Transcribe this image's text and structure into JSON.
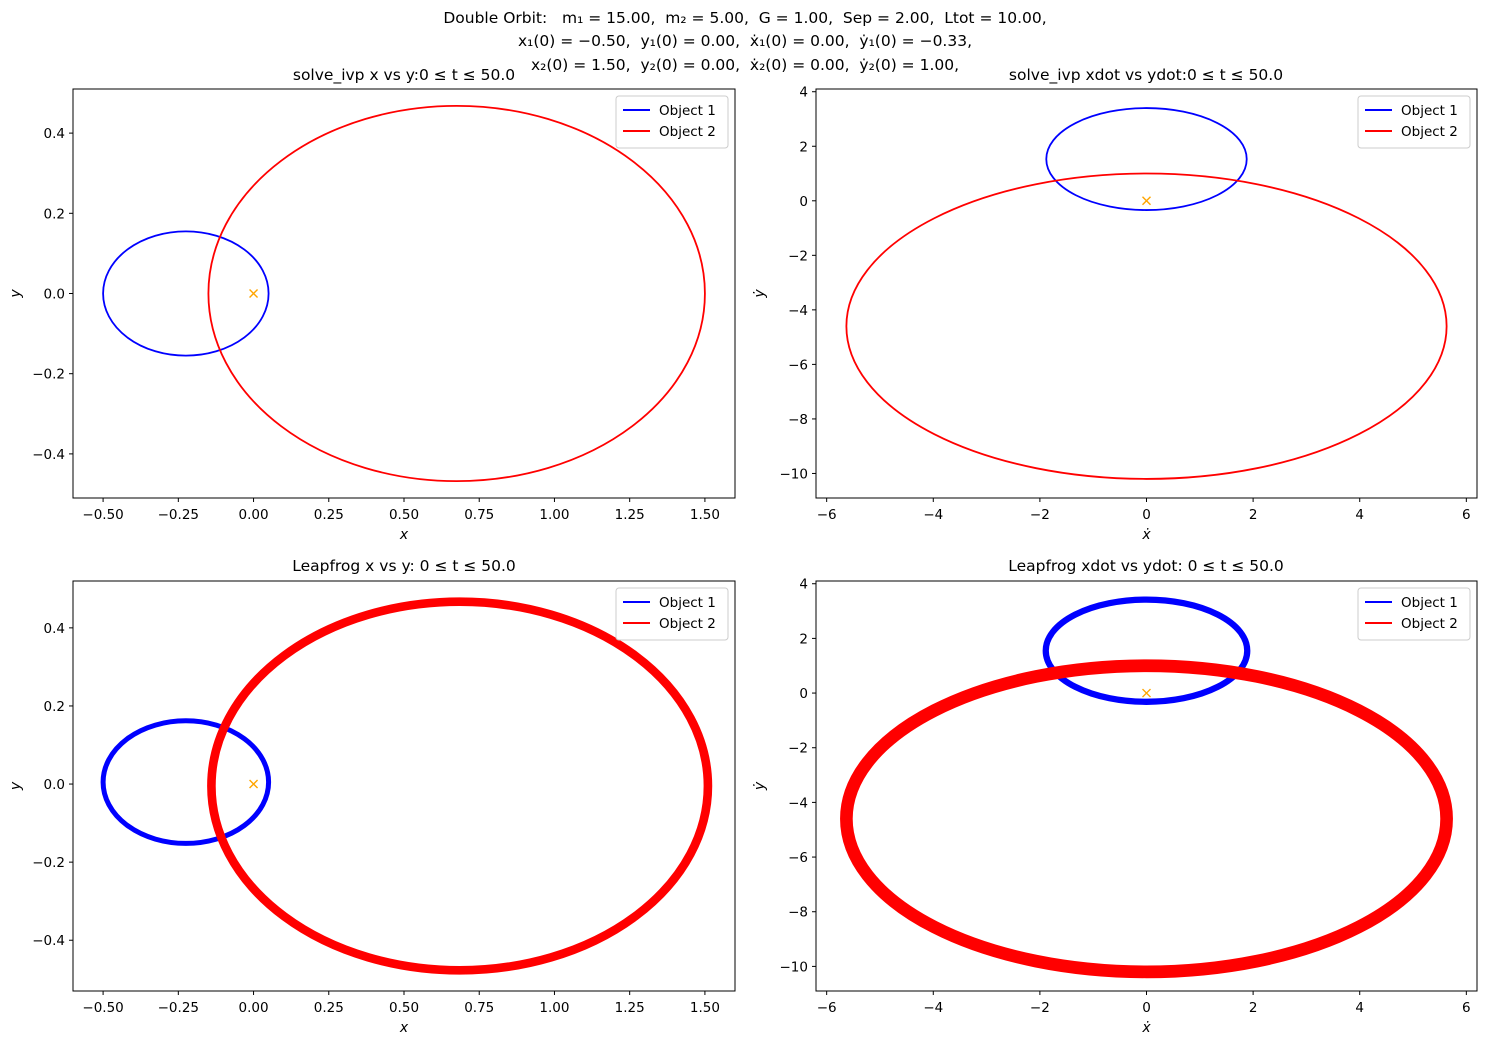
{
  "suptitle": {
    "line1": "Double Orbit:   m₁ = 15.00,  m₂ = 5.00,  G = 1.00,  Sep = 2.00,  Ltot = 10.00,",
    "line2": "x₁(0) = −0.50,  y₁(0) = 0.00,  ẋ₁(0) = 0.00,  ẏ₁(0) = −0.33,",
    "line3": "x₂(0) = 1.50,  y₂(0) = 0.00,  ẋ₂(0) = 0.00,  ẏ₂(0) = 1.00,"
  },
  "colors": {
    "object1": "#0000ff",
    "object2": "#ff0000",
    "center_marker": "#ffa500"
  },
  "chart_data": [
    {
      "type": "line",
      "title": "solve_ivp x vs y:0 ≤ t ≤ 50.0",
      "xlabel": "x",
      "ylabel": "y",
      "xlim": [
        -0.6,
        1.6
      ],
      "ylim": [
        -0.51,
        0.51
      ],
      "xticks": [
        -0.5,
        -0.25,
        0.0,
        0.25,
        0.5,
        0.75,
        1.0,
        1.25,
        1.5
      ],
      "xticklabels": [
        "−0.50",
        "−0.25",
        "0.00",
        "0.25",
        "0.50",
        "0.75",
        "1.00",
        "1.25",
        "1.50"
      ],
      "yticks": [
        -0.4,
        -0.2,
        0.0,
        0.2,
        0.4
      ],
      "yticklabels": [
        "−0.4",
        "−0.2",
        "0.0",
        "0.2",
        "0.4"
      ],
      "legend": "top-right",
      "series": [
        {
          "name": "Object 1",
          "ellipse": {
            "cx": -0.225,
            "cy": 0.0,
            "rx": 0.275,
            "ry": 0.155
          },
          "spread": 0
        },
        {
          "name": "Object 2",
          "ellipse": {
            "cx": 0.675,
            "cy": 0.0,
            "rx": 0.825,
            "ry": 0.468
          },
          "spread": 0
        }
      ],
      "center_marker": [
        0,
        0
      ]
    },
    {
      "type": "line",
      "title": "solve_ivp xdot vs ydot:0 ≤ t ≤ 50.0",
      "xlabel": "ẋ",
      "ylabel": "ẏ",
      "xlim": [
        -6.2,
        6.2
      ],
      "ylim": [
        -10.9,
        4.1
      ],
      "xticks": [
        -6,
        -4,
        -2,
        0,
        2,
        4,
        6
      ],
      "xticklabels": [
        "−6",
        "−4",
        "−2",
        "0",
        "2",
        "4",
        "6"
      ],
      "yticks": [
        -10,
        -8,
        -6,
        -4,
        -2,
        0,
        2,
        4
      ],
      "yticklabels": [
        "−10",
        "−8",
        "−6",
        "−4",
        "−2",
        "0",
        "2",
        "4"
      ],
      "legend": "top-right",
      "series": [
        {
          "name": "Object 1",
          "ellipse": {
            "cx": 0.0,
            "cy": 1.53,
            "rx": 1.88,
            "ry": 1.87
          },
          "spread": 0
        },
        {
          "name": "Object 2",
          "ellipse": {
            "cx": 0.0,
            "cy": -4.6,
            "rx": 5.63,
            "ry": 5.6
          },
          "spread": 0
        }
      ],
      "center_marker": [
        0,
        0
      ]
    },
    {
      "type": "line",
      "title": "Leapfrog x vs y: 0 ≤ t ≤ 50.0",
      "xlabel": "x",
      "ylabel": "y",
      "xlim": [
        -0.6,
        1.6
      ],
      "ylim": [
        -0.53,
        0.52
      ],
      "xticks": [
        -0.5,
        -0.25,
        0.0,
        0.25,
        0.5,
        0.75,
        1.0,
        1.25,
        1.5
      ],
      "xticklabels": [
        "−0.50",
        "−0.25",
        "0.00",
        "0.25",
        "0.50",
        "0.75",
        "1.00",
        "1.25",
        "1.50"
      ],
      "yticks": [
        -0.4,
        -0.2,
        0.0,
        0.2,
        0.4
      ],
      "yticklabels": [
        "−0.4",
        "−0.2",
        "0.0",
        "0.2",
        "0.4"
      ],
      "legend": "top-right",
      "series": [
        {
          "name": "Object 1",
          "ellipse": {
            "cx": -0.225,
            "cy": 0.005,
            "rx": 0.275,
            "ry": 0.157
          },
          "spread": 0.005
        },
        {
          "name": "Object 2",
          "ellipse": {
            "cx": 0.685,
            "cy": -0.005,
            "rx": 0.825,
            "ry": 0.472
          },
          "spread": 0.011
        }
      ],
      "center_marker": [
        0,
        0
      ]
    },
    {
      "type": "line",
      "title": "Leapfrog xdot vs ydot: 0 ≤ t ≤ 50.0",
      "xlabel": "ẋ",
      "ylabel": "ẏ",
      "xlim": [
        -6.2,
        6.2
      ],
      "ylim": [
        -10.9,
        4.1
      ],
      "xticks": [
        -6,
        -4,
        -2,
        0,
        2,
        4,
        6
      ],
      "xticklabels": [
        "−6",
        "−4",
        "−2",
        "0",
        "2",
        "4",
        "6"
      ],
      "yticks": [
        -10,
        -8,
        -6,
        -4,
        -2,
        0,
        2,
        4
      ],
      "yticklabels": [
        "−10",
        "−8",
        "−6",
        "−4",
        "−2",
        "0",
        "2",
        "4"
      ],
      "legend": "top-right",
      "series": [
        {
          "name": "Object 1",
          "ellipse": {
            "cx": 0.0,
            "cy": 1.55,
            "rx": 1.89,
            "ry": 1.87
          },
          "spread": 0.04
        },
        {
          "name": "Object 2",
          "ellipse": {
            "cx": 0.0,
            "cy": -4.6,
            "rx": 5.63,
            "ry": 5.6
          },
          "spread": 0.1
        }
      ],
      "center_marker": [
        0,
        0
      ]
    }
  ]
}
